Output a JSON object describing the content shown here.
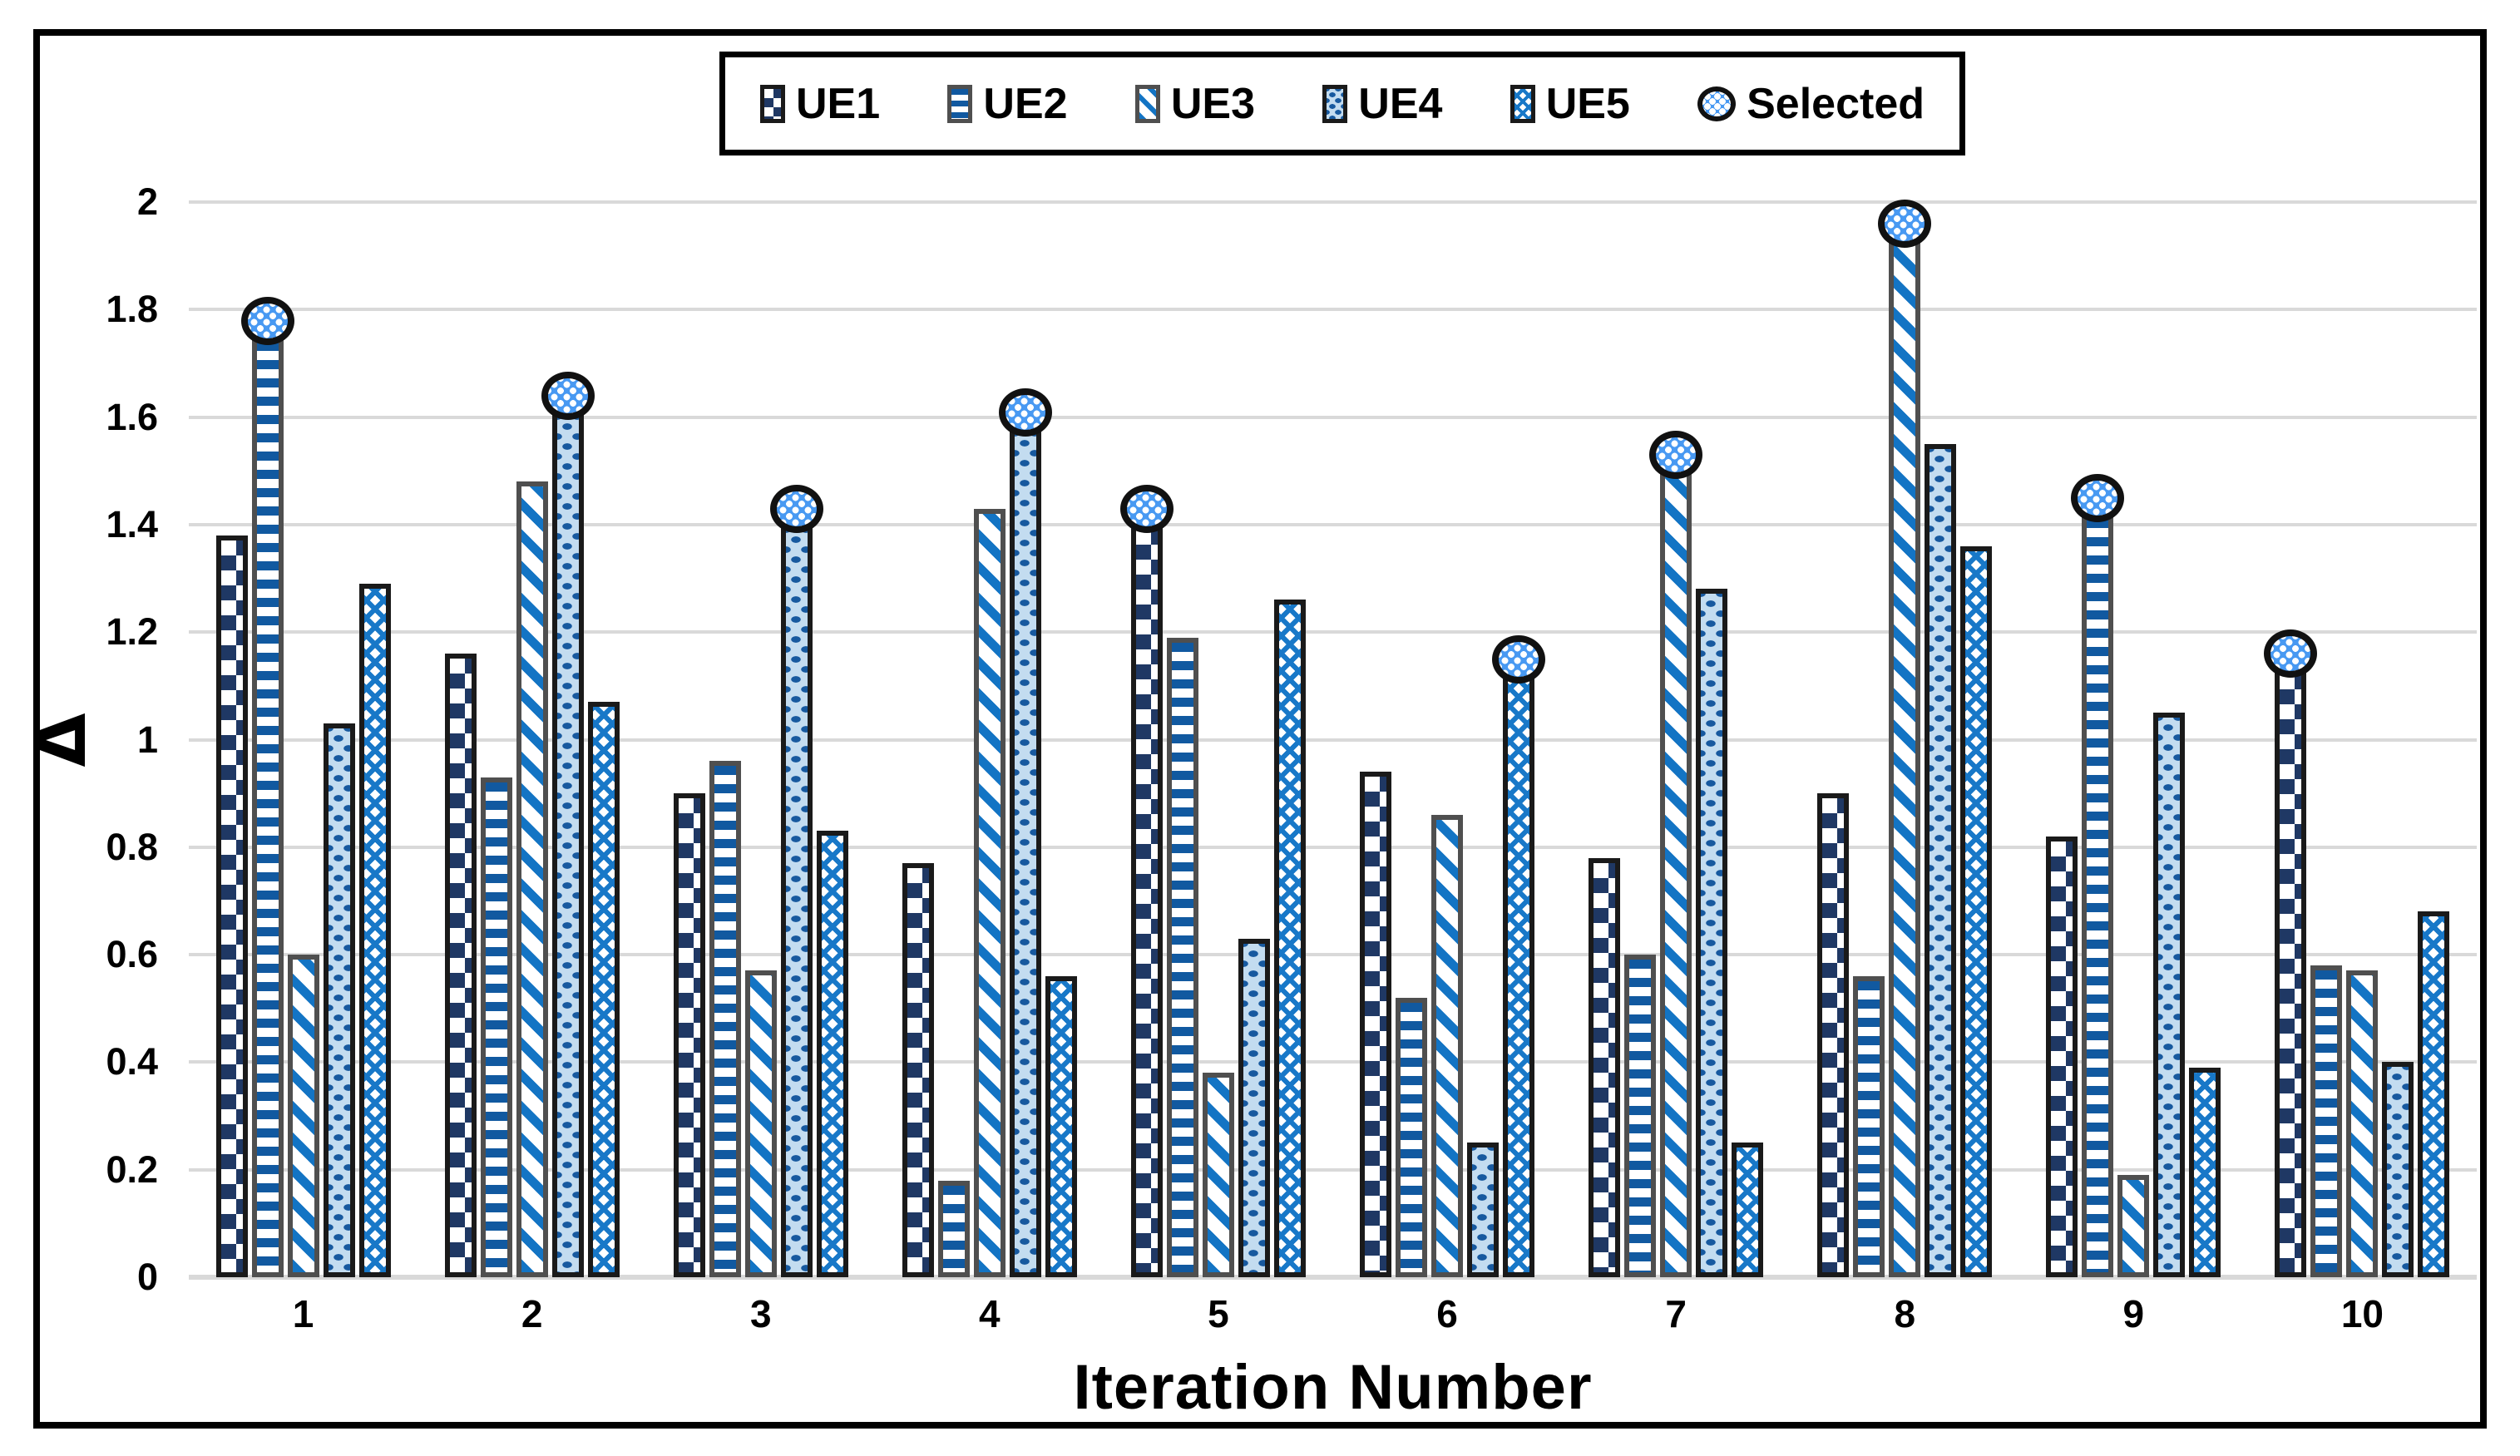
{
  "chart_data": {
    "type": "bar",
    "title": "",
    "xlabel": "Iteration Number",
    "ylabel": "Δ",
    "categories": [
      "1",
      "2",
      "3",
      "4",
      "5",
      "6",
      "7",
      "8",
      "9",
      "10"
    ],
    "series": [
      {
        "name": "UE1",
        "values": [
          1.38,
          1.16,
          0.9,
          0.77,
          1.4,
          0.94,
          0.78,
          0.9,
          0.82,
          1.13
        ]
      },
      {
        "name": "UE2",
        "values": [
          1.75,
          0.93,
          0.96,
          0.18,
          1.19,
          0.52,
          0.6,
          0.56,
          1.42,
          0.58
        ]
      },
      {
        "name": "UE3",
        "values": [
          0.6,
          1.48,
          0.57,
          1.43,
          0.38,
          0.86,
          1.5,
          1.93,
          0.19,
          0.57
        ]
      },
      {
        "name": "UE4",
        "values": [
          1.03,
          1.61,
          1.4,
          1.58,
          0.63,
          0.25,
          1.28,
          1.55,
          1.05,
          0.4
        ]
      },
      {
        "name": "UE5",
        "values": [
          1.29,
          1.07,
          0.83,
          0.56,
          1.26,
          1.12,
          0.25,
          1.36,
          0.39,
          0.68
        ]
      }
    ],
    "selected": {
      "label": "Selected",
      "series_by_category": [
        "UE2",
        "UE4",
        "UE4",
        "UE4",
        "UE1",
        "UE5",
        "UE3",
        "UE3",
        "UE2",
        "UE1"
      ]
    },
    "ylim": [
      0,
      2
    ],
    "yticks": [
      "0",
      "0.2",
      "0.4",
      "0.6",
      "0.8",
      "1",
      "1.2",
      "1.4",
      "1.6",
      "1.8",
      "2"
    ],
    "grid": true,
    "legend_position": "top-center"
  },
  "colors": {
    "ue1_navy": "#1F3864",
    "ue2_stripe_blue": "#1159A0",
    "ue3_diag_blue": "#1374C4",
    "ue4_fill_light_blue": "#C3DCF0",
    "ue4_dot_blue": "#17599F",
    "ue5_hatch_blue": "#1878C8",
    "selected_fill_blue": "#4899F2",
    "border_dark": "#1A1A1A",
    "border_gray": "#4F4F4F",
    "gridline_gray": "#D9D9D9",
    "text": "#000000"
  }
}
